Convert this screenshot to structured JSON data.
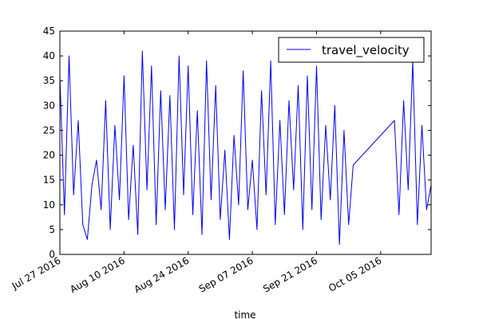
{
  "chart_data": {
    "type": "line",
    "xlabel": "time",
    "ylabel": "",
    "ylim": [
      0,
      45
    ],
    "xlim": [
      "2016-07-27",
      "2016-10-16"
    ],
    "y_ticks": [
      0,
      5,
      10,
      15,
      20,
      25,
      30,
      35,
      40,
      45
    ],
    "x_ticks": [
      {
        "date": "2016-07-27",
        "label": "Jul 27 2016"
      },
      {
        "date": "2016-08-10",
        "label": "Aug 10 2016"
      },
      {
        "date": "2016-08-24",
        "label": "Aug 24 2016"
      },
      {
        "date": "2016-09-07",
        "label": "Sep 07 2016"
      },
      {
        "date": "2016-09-21",
        "label": "Sep 21 2016"
      },
      {
        "date": "2016-10-05",
        "label": "Oct 05 2016"
      }
    ],
    "legend": {
      "position": "top-right"
    },
    "series": [
      {
        "name": "travel_velocity",
        "color": "#0000ff",
        "x": [
          "2016-07-27",
          "2016-07-28",
          "2016-07-29",
          "2016-07-30",
          "2016-07-31",
          "2016-08-01",
          "2016-08-02",
          "2016-08-03",
          "2016-08-04",
          "2016-08-05",
          "2016-08-06",
          "2016-08-07",
          "2016-08-08",
          "2016-08-09",
          "2016-08-10",
          "2016-08-11",
          "2016-08-12",
          "2016-08-13",
          "2016-08-14",
          "2016-08-15",
          "2016-08-16",
          "2016-08-17",
          "2016-08-18",
          "2016-08-19",
          "2016-08-20",
          "2016-08-21",
          "2016-08-22",
          "2016-08-23",
          "2016-08-24",
          "2016-08-25",
          "2016-08-26",
          "2016-08-27",
          "2016-08-28",
          "2016-08-29",
          "2016-08-30",
          "2016-08-31",
          "2016-09-01",
          "2016-09-02",
          "2016-09-03",
          "2016-09-04",
          "2016-09-05",
          "2016-09-06",
          "2016-09-07",
          "2016-09-08",
          "2016-09-09",
          "2016-09-10",
          "2016-09-11",
          "2016-09-12",
          "2016-09-13",
          "2016-09-14",
          "2016-09-15",
          "2016-09-16",
          "2016-09-17",
          "2016-09-18",
          "2016-09-19",
          "2016-09-20",
          "2016-09-21",
          "2016-09-22",
          "2016-09-23",
          "2016-09-24",
          "2016-09-25",
          "2016-09-26",
          "2016-09-27",
          "2016-09-28",
          "2016-09-29",
          "2016-10-08",
          "2016-10-09",
          "2016-10-10",
          "2016-10-11",
          "2016-10-12",
          "2016-10-13",
          "2016-10-14",
          "2016-10-15",
          "2016-10-16"
        ],
        "y": [
          36,
          8,
          40,
          12,
          27,
          6,
          3,
          14,
          19,
          9,
          31,
          5,
          26,
          11,
          36,
          7,
          22,
          4,
          41,
          13,
          38,
          6,
          33,
          9,
          32,
          5,
          40,
          12,
          38,
          8,
          29,
          4,
          39,
          11,
          34,
          7,
          21,
          3,
          24,
          10,
          37,
          9,
          19,
          5,
          33,
          12,
          39,
          6,
          27,
          8,
          31,
          13,
          34,
          5,
          36,
          9,
          38,
          7,
          26,
          11,
          30,
          2,
          25,
          6,
          18,
          27,
          8,
          31,
          13,
          39,
          6,
          26,
          9,
          14
        ]
      }
    ]
  }
}
